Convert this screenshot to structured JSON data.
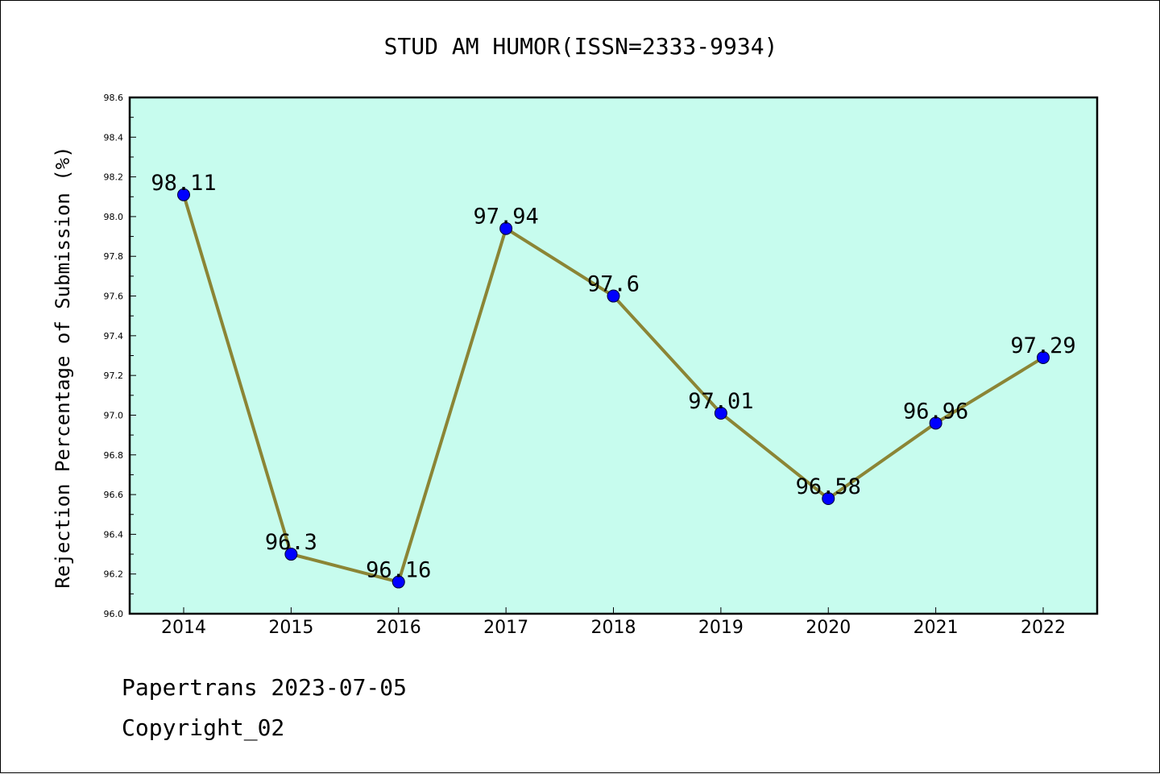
{
  "chart_data": {
    "type": "line",
    "title": "STUD AM HUMOR(ISSN=2333-9934)",
    "ylabel": "Rejection Percentage of Submission (%)",
    "xlabel": "",
    "categories": [
      "2014",
      "2015",
      "2016",
      "2017",
      "2018",
      "2019",
      "2020",
      "2021",
      "2022"
    ],
    "series": [
      {
        "values": [
          98.11,
          96.3,
          96.16,
          97.94,
          97.6,
          97.01,
          96.58,
          96.96,
          97.29
        ],
        "data_labels": [
          "98.11",
          "96.3",
          "96.16",
          "97.94",
          "97.6",
          "97.01",
          "96.58",
          "96.96",
          "97.29"
        ]
      }
    ],
    "ylim": [
      96.0,
      98.6
    ],
    "yticks": [
      "96.0",
      "96.2",
      "96.4",
      "96.6",
      "96.8",
      "97.0",
      "97.2",
      "97.4",
      "97.6",
      "97.8",
      "98.0",
      "98.2",
      "98.4",
      "98.6"
    ],
    "grid": false,
    "colors": {
      "plot_background": "#c7fcee",
      "line": "#8b8535",
      "marker": "#0000ff"
    }
  },
  "footer": {
    "line1": "Papertrans 2023-07-05",
    "line2": "Copyright_02"
  }
}
